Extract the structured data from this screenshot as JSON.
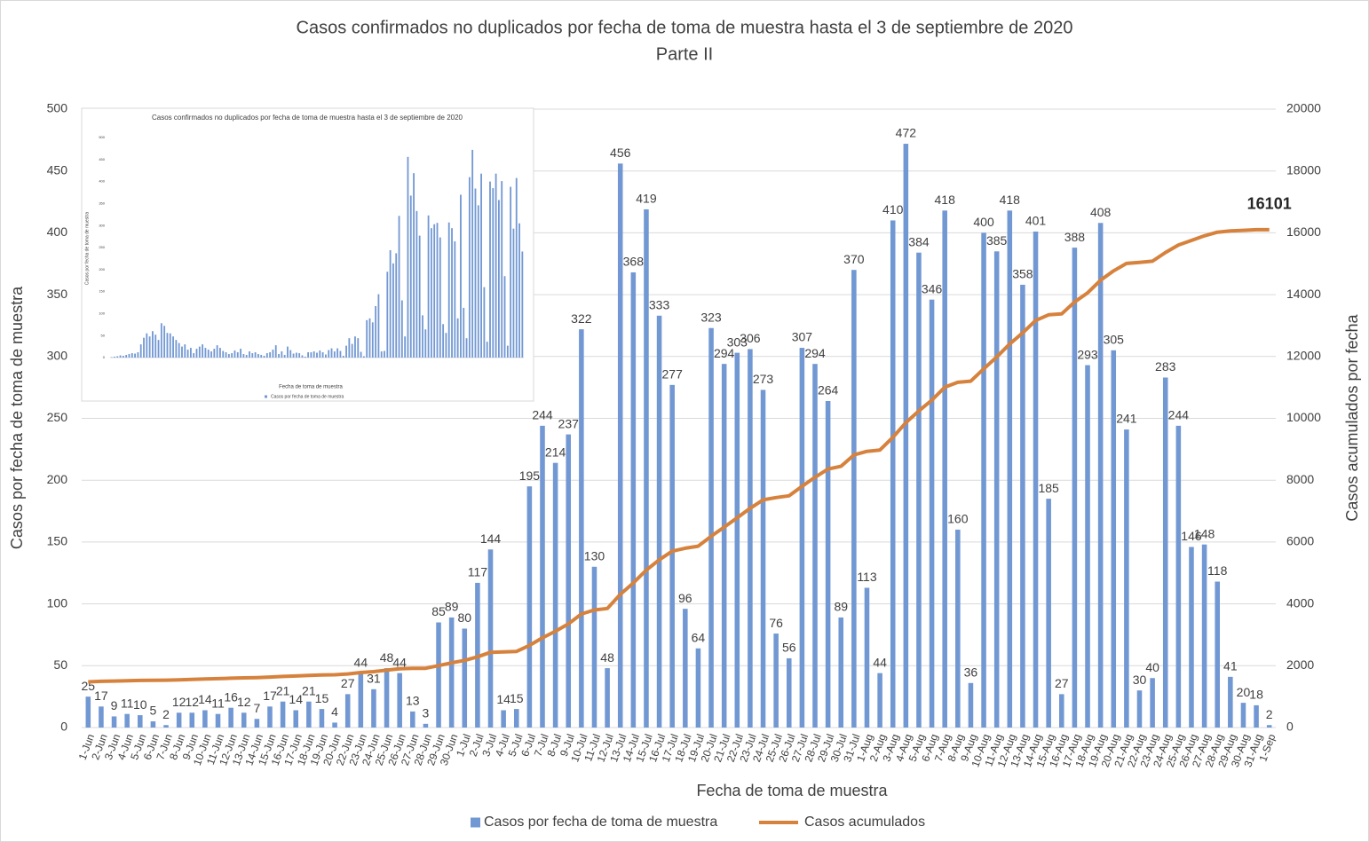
{
  "chart_data": [
    {
      "type": "bar",
      "title": "Casos confirmados no duplicados por fecha de toma de muestra hasta el 3 de septiembre de 2020",
      "subtitle": "Parte II",
      "x_label": "Fecha de toma de muestra",
      "y_label": "Casos por fecha de toma de muestra",
      "y2_label": "Casos acumulados por fecha",
      "categories": [
        "1-Jun",
        "2-Jun",
        "3-Jun",
        "4-Jun",
        "5-Jun",
        "6-Jun",
        "7-Jun",
        "8-Jun",
        "9-Jun",
        "10-Jun",
        "11-Jun",
        "12-Jun",
        "13-Jun",
        "14-Jun",
        "15-Jun",
        "16-Jun",
        "17-Jun",
        "18-Jun",
        "19-Jun",
        "20-Jun",
        "22-Jun",
        "23-Jun",
        "24-Jun",
        "25-Jun",
        "26-Jun",
        "27-Jun",
        "28-Jun",
        "29-Jun",
        "30-Jun",
        "1-Jul",
        "2-Jul",
        "3-Jul",
        "4-Jul",
        "5-Jul",
        "6-Jul",
        "7-Jul",
        "8-Jul",
        "9-Jul",
        "10-Jul",
        "11-Jul",
        "12-Jul",
        "13-Jul",
        "14-Jul",
        "15-Jul",
        "16-Jul",
        "17-Jul",
        "18-Jul",
        "19-Jul",
        "20-Jul",
        "21-Jul",
        "22-Jul",
        "23-Jul",
        "24-Jul",
        "25-Jul",
        "26-Jul",
        "27-Jul",
        "28-Jul",
        "29-Jul",
        "30-Jul",
        "31-Jul",
        "1-Aug",
        "2-Aug",
        "3-Aug",
        "4-Aug",
        "5-Aug",
        "6-Aug",
        "7-Aug",
        "8-Aug",
        "9-Aug",
        "10-Aug",
        "11-Aug",
        "12-Aug",
        "13-Aug",
        "14-Aug",
        "15-Aug",
        "16-Aug",
        "17-Aug",
        "18-Aug",
        "19-Aug",
        "20-Aug",
        "21-Aug",
        "22-Aug",
        "23-Aug",
        "24-Aug",
        "25-Aug",
        "26-Aug",
        "27-Aug",
        "28-Aug",
        "29-Aug",
        "30-Aug",
        "31-Aug",
        "1-Sep"
      ],
      "series": [
        {
          "name": "Casos por fecha de toma de muestra",
          "type": "bar",
          "color": "#7298d3",
          "values": [
            25,
            17,
            9,
            11,
            10,
            5,
            2,
            12,
            12,
            14,
            11,
            16,
            12,
            7,
            17,
            21,
            14,
            21,
            15,
            4,
            27,
            44,
            31,
            48,
            44,
            13,
            3,
            85,
            89,
            80,
            117,
            144,
            14,
            15,
            195,
            244,
            214,
            237,
            322,
            130,
            48,
            456,
            368,
            419,
            333,
            277,
            96,
            64,
            323,
            294,
            303,
            306,
            273,
            76,
            56,
            307,
            294,
            264,
            89,
            370,
            113,
            44,
            410,
            472,
            384,
            346,
            418,
            160,
            36,
            400,
            385,
            418,
            358,
            401,
            185,
            27,
            388,
            293,
            408,
            305,
            241,
            30,
            40,
            283,
            244,
            146,
            148,
            118,
            41,
            20,
            18,
            2
          ]
        },
        {
          "name": "Casos acumulados",
          "type": "line",
          "axis": "y2",
          "color": "#d6823d",
          "values": [
            1477,
            1494,
            1503,
            1514,
            1524,
            1529,
            1531,
            1543,
            1555,
            1569,
            1580,
            1596,
            1608,
            1615,
            1632,
            1653,
            1667,
            1688,
            1703,
            1707,
            1734,
            1778,
            1809,
            1857,
            1901,
            1914,
            1917,
            2002,
            2091,
            2171,
            2288,
            2432,
            2446,
            2461,
            2656,
            2900,
            3114,
            3351,
            3673,
            3803,
            3851,
            4307,
            4675,
            5094,
            5427,
            5704,
            5800,
            5864,
            6187,
            6481,
            6784,
            7090,
            7363,
            7439,
            7495,
            7802,
            8096,
            8360,
            8449,
            8819,
            8932,
            8976,
            9386,
            9858,
            10242,
            10588,
            11006,
            11166,
            11202,
            11602,
            11987,
            12405,
            12763,
            13164,
            13349,
            13376,
            13764,
            14057,
            14465,
            14770,
            15011,
            15041,
            15081,
            15364,
            15608,
            15754,
            15902,
            16020,
            16061,
            16081,
            16099,
            16101
          ]
        }
      ],
      "ylim": [
        0,
        500
      ],
      "yticks": [
        0,
        50,
        100,
        150,
        200,
        250,
        300,
        350,
        400,
        450,
        500
      ],
      "y2lim": [
        0,
        20000
      ],
      "y2ticks": [
        0,
        2000,
        4000,
        6000,
        8000,
        10000,
        12000,
        14000,
        16000,
        18000,
        20000
      ],
      "grid": true,
      "legend": "bottom"
    },
    {
      "type": "bar",
      "title": "Casos confirmados no duplicados por fecha de toma de muestra hasta el 3 de septiembre de 2020",
      "x_label": "Fecha de toma de muestra",
      "y_label": "Casos por fecha de toma de muestra",
      "series": [
        {
          "name": "Casos por fecha de toma de muestra",
          "type": "bar",
          "color": "#7298d3",
          "values": [
            1,
            2,
            3,
            5,
            4,
            6,
            8,
            10,
            9,
            12,
            30,
            45,
            55,
            48,
            60,
            52,
            40,
            78,
            72,
            56,
            55,
            48,
            40,
            33,
            25,
            30,
            18,
            22,
            10,
            20,
            25,
            30,
            22,
            18,
            14,
            20,
            28,
            22,
            15,
            12,
            8,
            10,
            16,
            12,
            20,
            8,
            6,
            14,
            10,
            12,
            8,
            6,
            4,
            10,
            12,
            18,
            28,
            8,
            14,
            6,
            25,
            17,
            9,
            11,
            10,
            5,
            2,
            12,
            12,
            14,
            11,
            16,
            12,
            7,
            17,
            21,
            14,
            21,
            15,
            4,
            27,
            44,
            31,
            48,
            44,
            13,
            3,
            85,
            89,
            80,
            117,
            144,
            14,
            15,
            195,
            244,
            214,
            237,
            322,
            130,
            48,
            456,
            368,
            419,
            333,
            277,
            96,
            64,
            323,
            294,
            303,
            306,
            273,
            76,
            56,
            307,
            294,
            264,
            89,
            370,
            113,
            44,
            410,
            472,
            384,
            346,
            418,
            160,
            36,
            400,
            385,
            418,
            358,
            401,
            185,
            27,
            388,
            293,
            408,
            305,
            241
          ]
        }
      ],
      "ylim": [
        0,
        500
      ],
      "yticks": [
        0,
        50,
        100,
        150,
        200,
        250,
        300,
        350,
        400,
        450,
        500
      ],
      "legend": "bottom"
    }
  ]
}
